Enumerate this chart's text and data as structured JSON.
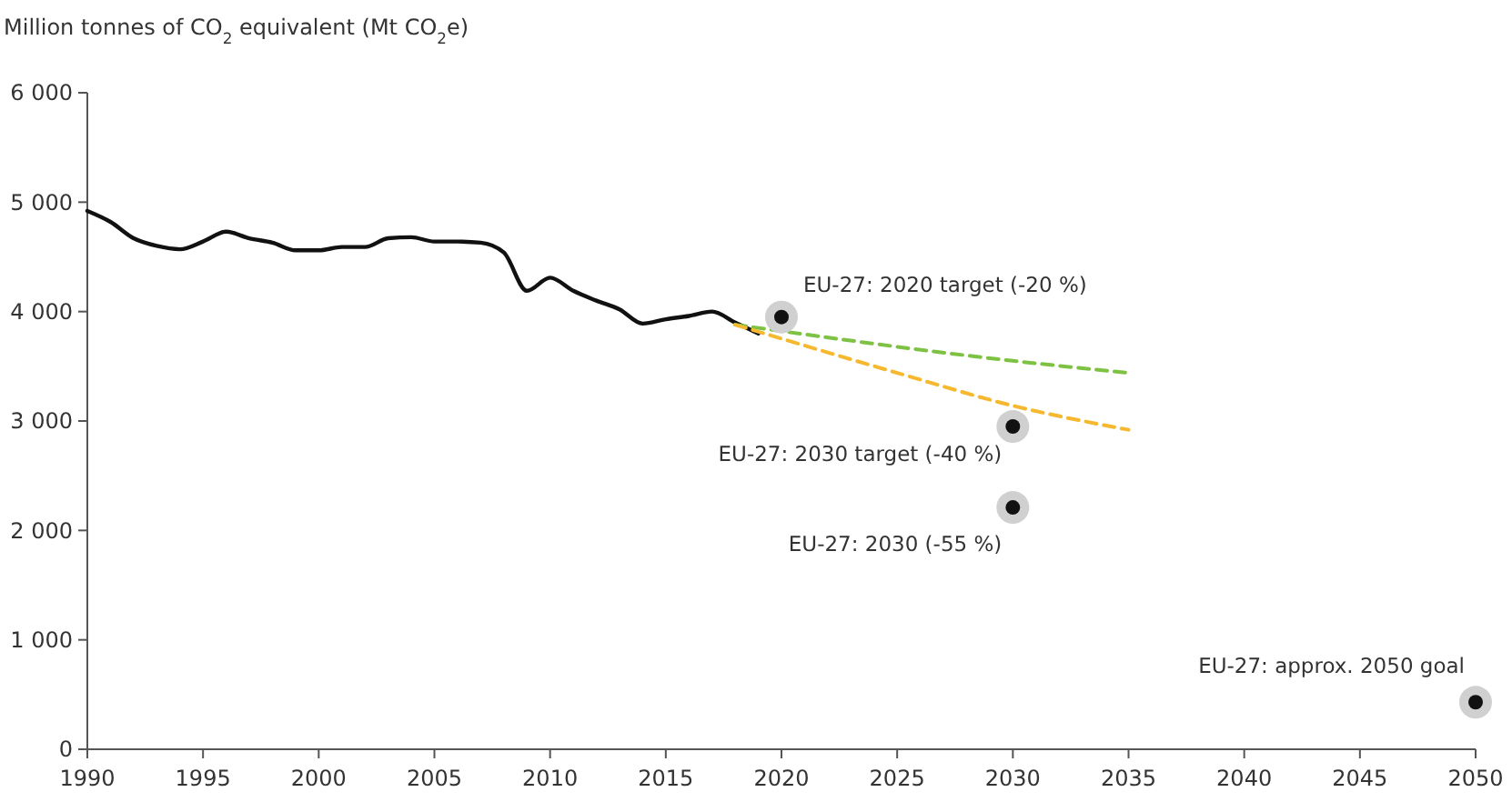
{
  "chart_data": {
    "type": "line",
    "ylabel": "Million tonnes of CO$_{2}$ equivalent (Mt CO$_{2}$e)",
    "xlim": [
      1990,
      2050
    ],
    "xticks": [
      1990,
      1995,
      2000,
      2005,
      2010,
      2015,
      2020,
      2025,
      2030,
      2035,
      2040,
      2045,
      2050
    ],
    "ylim": [
      0,
      6000
    ],
    "yticks": [
      0,
      {
        "value": 1000,
        "label": "1 000"
      },
      {
        "value": 2000,
        "label": "2 000"
      },
      {
        "value": 3000,
        "label": "3 000"
      },
      {
        "value": 4000,
        "label": "4 000"
      },
      {
        "value": 5000,
        "label": "5 000"
      },
      {
        "value": 6000,
        "label": "6 000"
      }
    ],
    "grid": false,
    "series": [
      {
        "color": "#111111",
        "line_style": "solid",
        "marker": "none",
        "x": [
          1990,
          1991,
          1992,
          1993,
          1994,
          1995,
          1996,
          1997,
          1998,
          1999,
          2000,
          2001,
          2002,
          2003,
          2004,
          2005,
          2006,
          2007,
          2008,
          2009,
          2010,
          2011,
          2012,
          2013,
          2014,
          2015,
          2016,
          2017,
          2018,
          2019
        ],
        "values": [
          4920,
          4820,
          4670,
          4600,
          4570,
          4640,
          4730,
          4670,
          4630,
          4560,
          4560,
          4590,
          4590,
          4670,
          4680,
          4640,
          4640,
          4630,
          4540,
          4190,
          4310,
          4190,
          4100,
          4020,
          3890,
          3930,
          3960,
          4000,
          3900,
          3800
        ]
      },
      {
        "color": "#7dc242",
        "line_style": "dashed",
        "marker": "none",
        "x": [
          2018,
          2030,
          2035
        ],
        "values": [
          3880,
          3550,
          3440
        ]
      },
      {
        "color": "#f5b82e",
        "line_style": "dashed",
        "marker": "none",
        "x": [
          2018,
          2025,
          2030,
          2035
        ],
        "values": [
          3880,
          3440,
          3140,
          2920
        ]
      },
      {
        "type": "scatter",
        "color": "#111111",
        "marker": "circle",
        "x": [
          2020,
          2030,
          2030,
          2050
        ],
        "values": [
          3950,
          2950,
          2210,
          430
        ]
      }
    ],
    "annotations": [
      {
        "text": "EU-27: 2020 target (-20 %)",
        "x": 2020,
        "y": 3950
      },
      {
        "text": "EU-27: 2030 target (-40 %)",
        "x": 2030,
        "y": 2950
      },
      {
        "text": "EU-27: 2030 (-55 %)",
        "x": 2030,
        "y": 2210
      },
      {
        "text": "EU-27: approx. 2050 goal",
        "x": 2050,
        "y": 430
      }
    ]
  }
}
